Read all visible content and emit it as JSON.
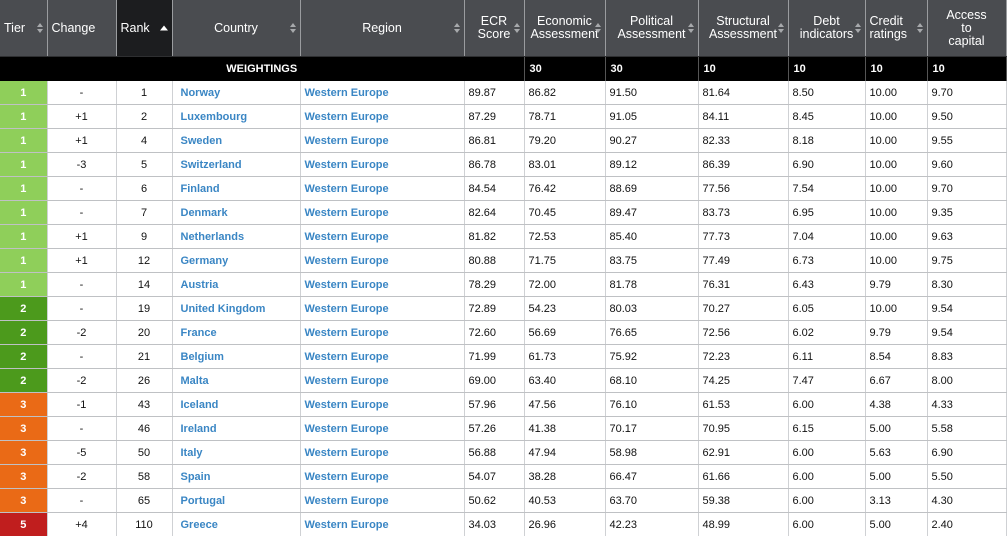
{
  "headers": {
    "tier": "Tier",
    "change": "Change",
    "rank": "Rank",
    "country": "Country",
    "region": "Region",
    "ecr": [
      "ECR",
      "Score"
    ],
    "economic": [
      "Economic",
      "Assessment"
    ],
    "political": [
      "Political",
      "Assessment"
    ],
    "structural": [
      "Structural",
      "Assessment"
    ],
    "debt": [
      "Debt",
      "indicators"
    ],
    "credit": [
      "Credit",
      "ratings"
    ],
    "access": [
      "Access",
      "to",
      "capital"
    ]
  },
  "weightings": {
    "label": "WEIGHTINGS",
    "economic": "30",
    "political": "30",
    "structural": "10",
    "debt": "10",
    "credit": "10",
    "access": "10"
  },
  "tier_colors": {
    "1": "#8fcf5a",
    "2": "#4c9a1c",
    "3": "#ea6a16",
    "5": "#c01e1e"
  },
  "rows": [
    {
      "tier": "1",
      "change": "-",
      "rank": "1",
      "country": "Norway",
      "region": "Western Europe",
      "ecr": "89.87",
      "economic": "86.82",
      "political": "91.50",
      "structural": "81.64",
      "debt": "8.50",
      "credit": "10.00",
      "access": "9.70"
    },
    {
      "tier": "1",
      "change": "+1",
      "rank": "2",
      "country": "Luxembourg",
      "region": "Western Europe",
      "ecr": "87.29",
      "economic": "78.71",
      "political": "91.05",
      "structural": "84.11",
      "debt": "8.45",
      "credit": "10.00",
      "access": "9.50"
    },
    {
      "tier": "1",
      "change": "+1",
      "rank": "4",
      "country": "Sweden",
      "region": "Western Europe",
      "ecr": "86.81",
      "economic": "79.20",
      "political": "90.27",
      "structural": "82.33",
      "debt": "8.18",
      "credit": "10.00",
      "access": "9.55"
    },
    {
      "tier": "1",
      "change": "-3",
      "rank": "5",
      "country": "Switzerland",
      "region": "Western Europe",
      "ecr": "86.78",
      "economic": "83.01",
      "political": "89.12",
      "structural": "86.39",
      "debt": "6.90",
      "credit": "10.00",
      "access": "9.60"
    },
    {
      "tier": "1",
      "change": "-",
      "rank": "6",
      "country": "Finland",
      "region": "Western Europe",
      "ecr": "84.54",
      "economic": "76.42",
      "political": "88.69",
      "structural": "77.56",
      "debt": "7.54",
      "credit": "10.00",
      "access": "9.70"
    },
    {
      "tier": "1",
      "change": "-",
      "rank": "7",
      "country": "Denmark",
      "region": "Western Europe",
      "ecr": "82.64",
      "economic": "70.45",
      "political": "89.47",
      "structural": "83.73",
      "debt": "6.95",
      "credit": "10.00",
      "access": "9.35"
    },
    {
      "tier": "1",
      "change": "+1",
      "rank": "9",
      "country": "Netherlands",
      "region": "Western Europe",
      "ecr": "81.82",
      "economic": "72.53",
      "political": "85.40",
      "structural": "77.73",
      "debt": "7.04",
      "credit": "10.00",
      "access": "9.63"
    },
    {
      "tier": "1",
      "change": "+1",
      "rank": "12",
      "country": "Germany",
      "region": "Western Europe",
      "ecr": "80.88",
      "economic": "71.75",
      "political": "83.75",
      "structural": "77.49",
      "debt": "6.73",
      "credit": "10.00",
      "access": "9.75"
    },
    {
      "tier": "1",
      "change": "-",
      "rank": "14",
      "country": "Austria",
      "region": "Western Europe",
      "ecr": "78.29",
      "economic": "72.00",
      "political": "81.78",
      "structural": "76.31",
      "debt": "6.43",
      "credit": "9.79",
      "access": "8.30"
    },
    {
      "tier": "2",
      "change": "-",
      "rank": "19",
      "country": "United Kingdom",
      "region": "Western Europe",
      "ecr": "72.89",
      "economic": "54.23",
      "political": "80.03",
      "structural": "70.27",
      "debt": "6.05",
      "credit": "10.00",
      "access": "9.54"
    },
    {
      "tier": "2",
      "change": "-2",
      "rank": "20",
      "country": "France",
      "region": "Western Europe",
      "ecr": "72.60",
      "economic": "56.69",
      "political": "76.65",
      "structural": "72.56",
      "debt": "6.02",
      "credit": "9.79",
      "access": "9.54"
    },
    {
      "tier": "2",
      "change": "-",
      "rank": "21",
      "country": "Belgium",
      "region": "Western Europe",
      "ecr": "71.99",
      "economic": "61.73",
      "political": "75.92",
      "structural": "72.23",
      "debt": "6.11",
      "credit": "8.54",
      "access": "8.83"
    },
    {
      "tier": "2",
      "change": "-2",
      "rank": "26",
      "country": "Malta",
      "region": "Western Europe",
      "ecr": "69.00",
      "economic": "63.40",
      "political": "68.10",
      "structural": "74.25",
      "debt": "7.47",
      "credit": "6.67",
      "access": "8.00"
    },
    {
      "tier": "3",
      "change": "-1",
      "rank": "43",
      "country": "Iceland",
      "region": "Western Europe",
      "ecr": "57.96",
      "economic": "47.56",
      "political": "76.10",
      "structural": "61.53",
      "debt": "6.00",
      "credit": "4.38",
      "access": "4.33"
    },
    {
      "tier": "3",
      "change": "-",
      "rank": "46",
      "country": "Ireland",
      "region": "Western Europe",
      "ecr": "57.26",
      "economic": "41.38",
      "political": "70.17",
      "structural": "70.95",
      "debt": "6.15",
      "credit": "5.00",
      "access": "5.58"
    },
    {
      "tier": "3",
      "change": "-5",
      "rank": "50",
      "country": "Italy",
      "region": "Western Europe",
      "ecr": "56.88",
      "economic": "47.94",
      "political": "58.98",
      "structural": "62.91",
      "debt": "6.00",
      "credit": "5.63",
      "access": "6.90"
    },
    {
      "tier": "3",
      "change": "-2",
      "rank": "58",
      "country": "Spain",
      "region": "Western Europe",
      "ecr": "54.07",
      "economic": "38.28",
      "political": "66.47",
      "structural": "61.66",
      "debt": "6.00",
      "credit": "5.00",
      "access": "5.50"
    },
    {
      "tier": "3",
      "change": "-",
      "rank": "65",
      "country": "Portugal",
      "region": "Western Europe",
      "ecr": "50.62",
      "economic": "40.53",
      "political": "63.70",
      "structural": "59.38",
      "debt": "6.00",
      "credit": "3.13",
      "access": "4.30"
    },
    {
      "tier": "5",
      "change": "+4",
      "rank": "110",
      "country": "Greece",
      "region": "Western Europe",
      "ecr": "34.03",
      "economic": "26.96",
      "political": "42.23",
      "structural": "48.99",
      "debt": "6.00",
      "credit": "5.00",
      "access": "2.40"
    }
  ]
}
